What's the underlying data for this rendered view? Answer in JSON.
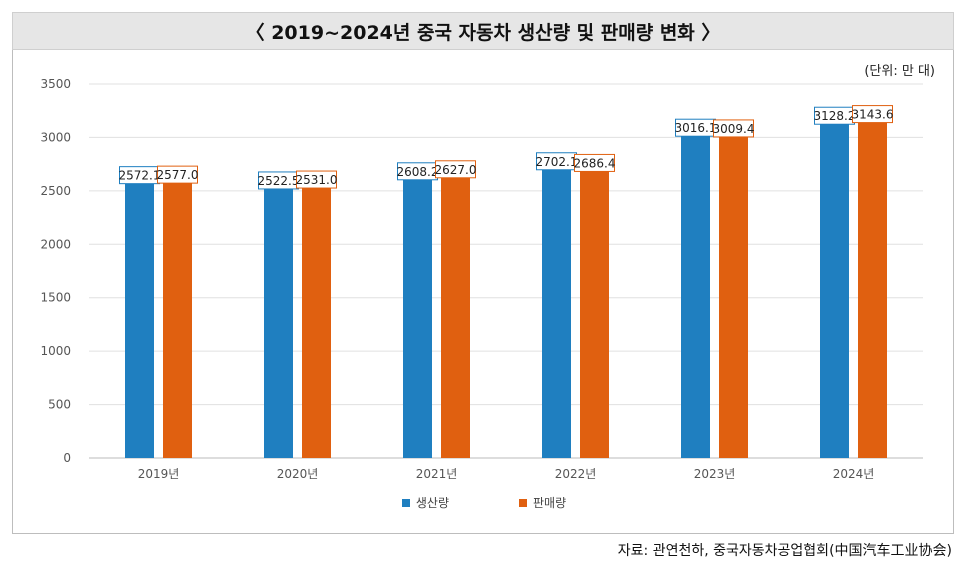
{
  "title": "〈 2019~2024년 중국 자동차 생산량 및 판매량 변화 〉",
  "unit_label": "(단위: 만 대)",
  "source": "자료: 관연천하, 중국자동차공업협회(中国汽车工业协会)",
  "colors": {
    "production": "#1f7fc0",
    "sales": "#e06010",
    "grid": "#e0e0e0",
    "axis_text": "#555555"
  },
  "chart_data": {
    "type": "bar",
    "categories": [
      "2019년",
      "2020년",
      "2021년",
      "2022년",
      "2023년",
      "2024년"
    ],
    "series": [
      {
        "name": "생산량",
        "values": [
          2572.1,
          2522.5,
          2608.2,
          2702.1,
          3016.1,
          3128.2
        ],
        "labels": [
          "2572.1",
          "2522.5",
          "2608.2",
          "2702.1",
          "3016.1",
          "3128.2"
        ]
      },
      {
        "name": "판매량",
        "values": [
          2577.0,
          2531.0,
          2627.0,
          2686.4,
          3009.4,
          3143.6
        ],
        "labels": [
          "2577.0",
          "2531.0",
          "2627.0",
          "2686.4",
          "3009.4",
          "3143.6"
        ]
      }
    ],
    "ylim": [
      0,
      3500
    ],
    "yticks": [
      0,
      500,
      1000,
      1500,
      2000,
      2500,
      3000,
      3500
    ],
    "grid": true,
    "legend": "bottom",
    "title": "〈 2019~2024년 중국 자동차 생산량 및 판매량 변화 〉",
    "xlabel": "",
    "ylabel": ""
  }
}
